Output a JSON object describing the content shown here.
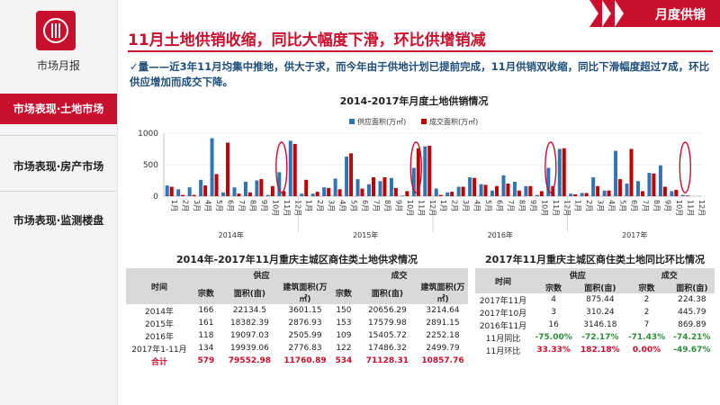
{
  "sidebar": {
    "report_title": "市场月报",
    "items": [
      {
        "label": "市场表现·土地市场",
        "active": true
      },
      {
        "label": "市场表现·房产市场",
        "active": false
      },
      {
        "label": "市场表现·监测楼盘",
        "active": false
      }
    ]
  },
  "header": {
    "section_tag": "月度供销",
    "title": "11月土地供销收缩，同比大幅度下滑，环比供增销减"
  },
  "summary": "✓量——近3年11月均集中推地，供大于求，而今年由于供地计划已提前完成，11月供销双收缩，同比下滑幅度超过7成，环比供应增加而成交下降。",
  "colors": {
    "accent": "#c8102e",
    "supply": "#2e75b6",
    "deal": "#c00000",
    "green": "#2e8b3a"
  },
  "chart_data": {
    "type": "bar",
    "title": "2014-2017年月度土地供销情况",
    "legend": [
      "供应面积(万㎡)",
      "成交面积(万㎡)"
    ],
    "legend_position": "top",
    "ylim": [
      0,
      1000
    ],
    "yticks": [
      0,
      500,
      1000
    ],
    "years": [
      "2014年",
      "2015年",
      "2016年",
      "2017年"
    ],
    "months": [
      "1月",
      "2月",
      "3月",
      "4月",
      "5月",
      "6月",
      "7月",
      "8月",
      "9月",
      "10月",
      "11月",
      "12月"
    ],
    "series": [
      {
        "name": "供应面积(万㎡)",
        "values": [
          170,
          110,
          140,
          260,
          920,
          60,
          140,
          230,
          250,
          20,
          380,
          880,
          40,
          40,
          140,
          280,
          630,
          270,
          190,
          240,
          290,
          10,
          450,
          790,
          120,
          60,
          150,
          300,
          190,
          90,
          330,
          230,
          160,
          20,
          450,
          750,
          40,
          50,
          300,
          90,
          720,
          200,
          240,
          370,
          490,
          80,
          20,
          null
        ]
      },
      {
        "name": "成交面积(万㎡)",
        "values": [
          150,
          20,
          20,
          170,
          350,
          850,
          40,
          60,
          270,
          160,
          80,
          830,
          260,
          70,
          130,
          110,
          680,
          120,
          300,
          300,
          130,
          80,
          760,
          800,
          20,
          70,
          150,
          290,
          180,
          160,
          200,
          90,
          160,
          80,
          160,
          760,
          30,
          50,
          160,
          90,
          270,
          750,
          80,
          360,
          150,
          100,
          10,
          null
        ]
      }
    ],
    "highlighted": [
      "2014年11月",
      "2015年11月",
      "2016年11月",
      "2017年11月"
    ]
  },
  "table1": {
    "title": "2014年-2017年11月重庆主城区商住类土地供求情况",
    "col_time": "时间",
    "group_supply": "供应",
    "group_deal": "成交",
    "cols": [
      "宗数",
      "面积(亩)",
      "建筑面积(万㎡)",
      "宗数",
      "面积(亩)",
      "建筑面积(万㎡)"
    ],
    "rows": [
      [
        "2014年",
        "166",
        "22134.5",
        "3601.15",
        "150",
        "20656.29",
        "3214.64"
      ],
      [
        "2015年",
        "161",
        "18382.39",
        "2876.93",
        "153",
        "17579.98",
        "2891.15"
      ],
      [
        "2016年",
        "118",
        "19097.03",
        "2505.99",
        "109",
        "15405.72",
        "2252.18"
      ],
      [
        "2017年1-11月",
        "134",
        "19939.06",
        "2776.83",
        "122",
        "17486.32",
        "2499.79"
      ]
    ],
    "total": [
      "合计",
      "579",
      "79552.98",
      "11760.89",
      "534",
      "71128.31",
      "10857.76"
    ]
  },
  "table2": {
    "title": "2017年11月重庆主城区商住类土地同比环比情况",
    "col_time": "时间",
    "group_supply": "供应",
    "group_deal": "成交",
    "cols": [
      "宗数",
      "面积(亩)",
      "宗数",
      "面积(亩)"
    ],
    "rows": [
      [
        "2017年11月",
        "4",
        "875.44",
        "2",
        "224.38"
      ],
      [
        "2017年10月",
        "3",
        "310.24",
        "2",
        "445.79"
      ],
      [
        "2016年11月",
        "16",
        "3146.18",
        "7",
        "869.89"
      ]
    ],
    "yoy": [
      "11月同比",
      "-75.00%",
      "-72.17%",
      "-71.43%",
      "-74.21%"
    ],
    "mom": [
      "11月环比",
      "33.33%",
      "182.18%",
      "0.00%",
      "-49.67%"
    ]
  }
}
